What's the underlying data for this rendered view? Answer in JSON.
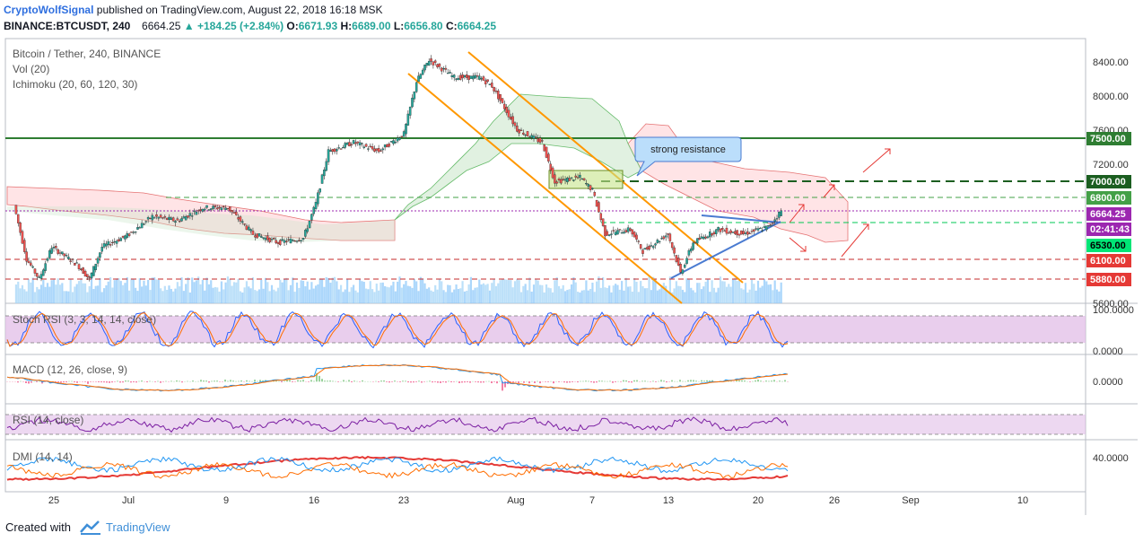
{
  "header": {
    "author": "CryptoWolfSignal",
    "published_text": "published on TradingView.com, August 22, 2018 16:18 MSK",
    "symbol": "BINANCE:BTCUSDT, 240",
    "last": "6664.25",
    "change": "▲ +184.25 (+2.84%)",
    "o_label": "O:",
    "o_val": "6671.93",
    "h_label": "H:",
    "h_val": "6689.00",
    "l_label": "L:",
    "l_val": "6656.80",
    "c_label": "C:",
    "c_val": "6664.25"
  },
  "legend": {
    "title": "Bitcoin / Tether, 240, BINANCE",
    "vol": "Vol (20)",
    "ichimoku": "Ichimoku (20, 60, 120, 30)",
    "stoch": "Stoch RSI (3, 3, 14, 14, close)",
    "macd": "MACD (12, 26, close, 9)",
    "rsi": "RSI (14, close)",
    "dmi": "DMI (14, 14)"
  },
  "annotation": {
    "text": "strong resistance"
  },
  "price_axis": {
    "ticks": [
      "8400.00",
      "8000.00",
      "7600.00",
      "7200.00",
      "5600.00"
    ],
    "labels": [
      {
        "text": "7500.00",
        "color": "#2e7d32"
      },
      {
        "text": "7000.00",
        "color": "#1b5e20"
      },
      {
        "text": "6800.00",
        "color": "#43a047"
      },
      {
        "text": "6664.25",
        "color": "#9c27b0"
      },
      {
        "text": "02:41:43",
        "color": "#9c27b0"
      },
      {
        "text": "6530.00",
        "color": "#00c853"
      },
      {
        "text": "6100.00",
        "color": "#e53935"
      },
      {
        "text": "5880.00",
        "color": "#e53935"
      }
    ]
  },
  "indicator_axis": {
    "stoch": [
      "100.0000",
      "0.0000"
    ],
    "macd": [
      "0.0000"
    ],
    "dmi": [
      "40.0000"
    ]
  },
  "time_axis": [
    "25",
    "Jul",
    "9",
    "16",
    "23",
    "Aug",
    "7",
    "13",
    "20",
    "26",
    "Sep",
    "10"
  ],
  "footer": {
    "created_with": "Created with",
    "brand": "TradingView"
  },
  "colors": {
    "up": "#26a69a",
    "down": "#ef5350",
    "channel": "#ff9800",
    "trend": "#4a7bd1",
    "kumo_bull": "#c8e6c9",
    "kumo_bear": "#ffcdd2",
    "volume": "#90caf9"
  },
  "chart_data": {
    "type": "candlestick",
    "symbol": "BTCUSDT",
    "interval": "240",
    "x_labels": [
      "25",
      "Jul",
      "9",
      "16",
      "23",
      "Aug",
      "7",
      "13",
      "20",
      "26",
      "Sep",
      "10"
    ],
    "ylim": [
      5600,
      8500
    ],
    "price_path": [
      [
        "Jun 22",
        6730
      ],
      [
        "Jun 23",
        6110
      ],
      [
        "Jun 24",
        5880
      ],
      [
        "Jun 25",
        6250
      ],
      [
        "Jun 26",
        6150
      ],
      [
        "Jun 27",
        6050
      ],
      [
        "Jun 28",
        5880
      ],
      [
        "Jun 29",
        6250
      ],
      [
        "Jul 1",
        6380
      ],
      [
        "Jul 3",
        6600
      ],
      [
        "Jul 5",
        6550
      ],
      [
        "Jul 7",
        6700
      ],
      [
        "Jul 9",
        6700
      ],
      [
        "Jul 11",
        6400
      ],
      [
        "Jul 13",
        6300
      ],
      [
        "Jul 15",
        6350
      ],
      [
        "Jul 16",
        6750
      ],
      [
        "Jul 17",
        7350
      ],
      [
        "Jul 19",
        7450
      ],
      [
        "Jul 21",
        7350
      ],
      [
        "Jul 23",
        7550
      ],
      [
        "Jul 24",
        8150
      ],
      [
        "Jul 25",
        8400
      ],
      [
        "Jul 27",
        8200
      ],
      [
        "Jul 29",
        8200
      ],
      [
        "Jul 30",
        8100
      ],
      [
        "Aug 1",
        7600
      ],
      [
        "Aug 3",
        7450
      ],
      [
        "Aug 4",
        7000
      ],
      [
        "Aug 6",
        7050
      ],
      [
        "Aug 7",
        6900
      ],
      [
        "Aug 8",
        6400
      ],
      [
        "Aug 10",
        6450
      ],
      [
        "Aug 11",
        6200
      ],
      [
        "Aug 13",
        6400
      ],
      [
        "Aug 14",
        5950
      ],
      [
        "Aug 15",
        6300
      ],
      [
        "Aug 17",
        6450
      ],
      [
        "Aug 19",
        6400
      ],
      [
        "Aug 21",
        6480
      ],
      [
        "Aug 22",
        6664.25
      ]
    ],
    "horizontal_levels": [
      7500,
      7000,
      6800,
      6664.25,
      6530,
      6100,
      5880
    ],
    "annotations": [
      "strong resistance"
    ]
  }
}
